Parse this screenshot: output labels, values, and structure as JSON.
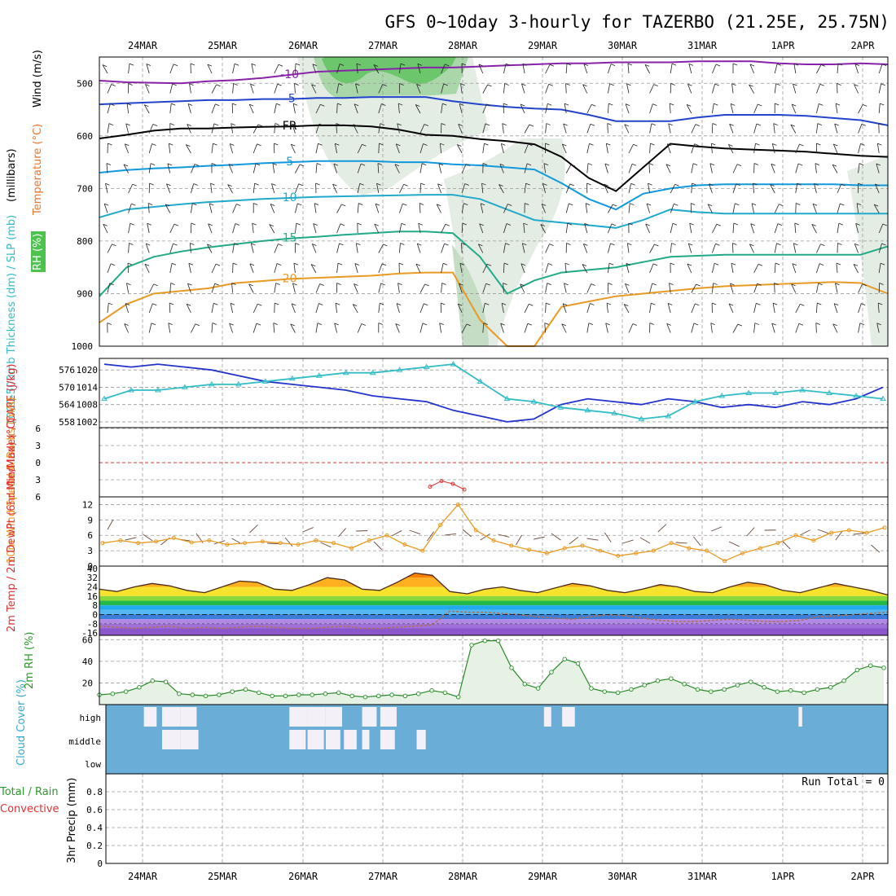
{
  "title": "GFS 0~10day 3-hourly for TAZERBO (21.25E, 25.75N)",
  "dates": [
    "24MAR",
    "25MAR",
    "26MAR",
    "27MAR",
    "28MAR",
    "29MAR",
    "30MAR",
    "31MAR",
    "1APR",
    "2APR"
  ],
  "colors": {
    "cyan": "#33bcc6",
    "blue": "#2233cc",
    "orange": "#e89a25",
    "green": "#2a8a2a",
    "purple": "#8822aa",
    "cloud": "#6aadd6",
    "cloudwhite": "#eeeef4"
  },
  "chart_data": [
    {
      "id": "upper",
      "type": "area",
      "ylabel": "(millibars)",
      "ylabel_lines": [
        "RH (%)",
        "Temperature (°C)",
        "Wind (m/s)"
      ],
      "yticks": [
        500,
        600,
        700,
        800,
        900,
        1000
      ],
      "ylim": [
        1000,
        450
      ],
      "temperature_contour_labels": [
        "-10",
        "-5",
        "FR",
        "5",
        "10",
        "15",
        "20"
      ],
      "temperature_isotherms": [
        {
          "label": "-10",
          "color": "#8822aa",
          "pressure": [
            495,
            498,
            499,
            500,
            496,
            494,
            490,
            484,
            478,
            476,
            474,
            472,
            470,
            470,
            468,
            466,
            464,
            462,
            462,
            460,
            460,
            460,
            458,
            458,
            458,
            462,
            464,
            464,
            462,
            464
          ]
        },
        {
          "label": "-5",
          "color": "#2244cc",
          "pressure": [
            540,
            538,
            536,
            534,
            532,
            532,
            530,
            530,
            528,
            528,
            526,
            526,
            526,
            534,
            540,
            545,
            548,
            550,
            560,
            572,
            572,
            572,
            565,
            560,
            560,
            560,
            562,
            566,
            570,
            580
          ]
        },
        {
          "label": "FR",
          "color": "#000000",
          "pressure": [
            605,
            598,
            590,
            586,
            586,
            584,
            583,
            582,
            580,
            580,
            582,
            588,
            598,
            600,
            606,
            610,
            616,
            640,
            680,
            705,
            660,
            615,
            620,
            624,
            626,
            628,
            630,
            634,
            638,
            640
          ]
        },
        {
          "label": "5",
          "color": "#1199dd",
          "pressure": [
            670,
            665,
            662,
            660,
            657,
            655,
            652,
            650,
            648,
            648,
            648,
            650,
            650,
            654,
            656,
            660,
            664,
            690,
            720,
            740,
            710,
            700,
            694,
            692,
            692,
            692,
            692,
            692,
            694,
            694
          ]
        },
        {
          "label": "10",
          "color": "#22aacc",
          "pressure": [
            755,
            740,
            735,
            730,
            726,
            723,
            720,
            718,
            716,
            715,
            714,
            713,
            712,
            712,
            720,
            740,
            760,
            765,
            770,
            775,
            760,
            740,
            745,
            748,
            748,
            748,
            748,
            748,
            748,
            748
          ]
        },
        {
          "label": "15",
          "color": "#22aa88",
          "pressure": [
            905,
            850,
            830,
            820,
            812,
            806,
            800,
            795,
            792,
            788,
            785,
            782,
            782,
            785,
            830,
            900,
            875,
            860,
            855,
            850,
            840,
            830,
            828,
            826,
            826,
            826,
            826,
            826,
            826,
            810
          ]
        },
        {
          "label": "20",
          "color": "#e89a25",
          "pressure": [
            955,
            920,
            900,
            895,
            890,
            880,
            876,
            872,
            870,
            868,
            866,
            862,
            860,
            860,
            950,
            1000,
            1000,
            925,
            915,
            905,
            900,
            895,
            890,
            886,
            884,
            882,
            880,
            878,
            880,
            900
          ]
        }
      ]
    },
    {
      "id": "slp-thickness",
      "type": "line",
      "ylabel": "1000-500mb Thickness (dm) / SLP (mb)",
      "left_ticks": [
        "576",
        "570",
        "564",
        "558"
      ],
      "right_ticks": [
        "1020",
        "1014",
        "1008",
        "1002"
      ],
      "series": [
        {
          "name": "SLP (mb)",
          "color": "#2233cc",
          "values": [
            1022,
            1021,
            1022,
            1021,
            1020,
            1018,
            1016,
            1015,
            1014,
            1013,
            1011,
            1010,
            1009,
            1006,
            1004,
            1002,
            1003,
            1008,
            1010,
            1009,
            1008,
            1010,
            1009,
            1007,
            1008,
            1007,
            1009,
            1008,
            1010,
            1014
          ]
        },
        {
          "name": "1000-500mb Thickness (dm)",
          "color": "#33bcc6",
          "values": [
            566,
            569,
            569,
            570,
            571,
            571,
            572,
            573,
            574,
            575,
            575,
            576,
            577,
            578,
            572,
            566,
            565,
            563,
            562,
            561,
            559,
            560,
            565,
            567,
            568,
            568,
            569,
            568,
            567,
            566
          ]
        }
      ]
    },
    {
      "id": "cape-li",
      "type": "line",
      "ylabel": "Lifted Index / CAPE (J/kg)",
      "yticks": [
        "-6",
        "-3",
        "0",
        "3",
        "6"
      ],
      "series": [
        {
          "name": "Lifted Index",
          "color": "#dd3333",
          "x": [
            27.6,
            27.75,
            27.9,
            28.05
          ],
          "values": [
            4.5,
            3.5,
            4.0,
            5.0
          ]
        }
      ]
    },
    {
      "id": "wind10m",
      "type": "line",
      "ylabel": "10m Wind Speed & Barbs (m/s)",
      "yticks": [
        "12",
        "9",
        "6",
        "3",
        "0"
      ],
      "series": [
        {
          "name": "10m Wind Speed",
          "color": "#e89a25",
          "values": [
            4.5,
            5,
            4.5,
            4.8,
            5.5,
            4.6,
            5,
            4.2,
            4.5,
            4.8,
            4.5,
            4.2,
            5,
            4.5,
            3.5,
            5,
            6,
            4.2,
            3,
            8,
            12,
            7,
            5,
            4,
            3.2,
            2.5,
            3.5,
            4,
            3,
            2,
            2.5,
            3,
            4.5,
            3.5,
            3,
            1,
            2.5,
            3.5,
            4.5,
            6,
            5,
            6.5,
            7,
            6.5,
            7.5
          ]
        }
      ]
    },
    {
      "id": "temp2m",
      "type": "area",
      "ylabel": "2m Temp / 2m DewPt (6hr Min/Max) (°C)",
      "yticks": [
        "40",
        "32",
        "24",
        "16",
        "8",
        "0",
        "-8",
        "-16"
      ],
      "series": [
        {
          "name": "2m Temp",
          "values": [
            22,
            20,
            24,
            27,
            25,
            21,
            19,
            24,
            29,
            28,
            22,
            21,
            26,
            32,
            30,
            22,
            21,
            28,
            36,
            34,
            20,
            18,
            22,
            24,
            21,
            19,
            23,
            27,
            25,
            21,
            19,
            22,
            26,
            24,
            20,
            19,
            24,
            28,
            26,
            21,
            19,
            23,
            27,
            24,
            21,
            17
          ]
        },
        {
          "name": "2m DewPt",
          "values": [
            -10,
            -11,
            -12,
            -11,
            -10,
            -12,
            -11,
            -12,
            -11,
            -10,
            -11,
            -12,
            -12,
            -11,
            -10,
            -12,
            -12,
            -11,
            -10,
            -9,
            3,
            2,
            2,
            1,
            0,
            -2,
            -3,
            -4,
            -2,
            0,
            -1,
            -3,
            -5,
            -6,
            -6,
            -5,
            -4,
            -5,
            -6,
            -6,
            -5,
            -2,
            -1,
            0,
            1,
            2
          ]
        }
      ]
    },
    {
      "id": "rh2m",
      "type": "area",
      "ylabel": "2m RH (%)",
      "yticks": [
        "60",
        "40",
        "20"
      ],
      "series": [
        {
          "name": "2m RH",
          "values": [
            9,
            10,
            12,
            16,
            22,
            21,
            10,
            9,
            8,
            9,
            12,
            14,
            11,
            8,
            8,
            9,
            9,
            10,
            11,
            8,
            7,
            8,
            9,
            8,
            10,
            13,
            11,
            7,
            55,
            59,
            59,
            34,
            19,
            15,
            30,
            42,
            38,
            15,
            12,
            11,
            14,
            18,
            22,
            24,
            19,
            14,
            12,
            14,
            18,
            21,
            16,
            12,
            13,
            11,
            14,
            16,
            22,
            32,
            36,
            34
          ]
        }
      ]
    },
    {
      "id": "cloud",
      "type": "heatmap",
      "ylabel": "Cloud Cover (%)",
      "yticks": [
        "high",
        "middle",
        "low"
      ],
      "series": [
        {
          "name": "high",
          "values": [
            0,
            0,
            0.6,
            0.9,
            0.8,
            0,
            0,
            0,
            0,
            0,
            0.9,
            0.9,
            0.8,
            0,
            0.7,
            0.8,
            0,
            0,
            0,
            0,
            0,
            0,
            0,
            0,
            0.3,
            0.6,
            0,
            0,
            0,
            0,
            0,
            0,
            0,
            0,
            0,
            0,
            0,
            0,
            0.1,
            0,
            0,
            0,
            0
          ]
        },
        {
          "name": "middle",
          "values": [
            0,
            0,
            0,
            0.9,
            0.9,
            0,
            0,
            0,
            0,
            0,
            0.8,
            0.8,
            0.7,
            0.6,
            0.3,
            0.7,
            0,
            0.4,
            0,
            0,
            0,
            0,
            0,
            0,
            0,
            0,
            0,
            0,
            0,
            0,
            0,
            0,
            0,
            0,
            0,
            0,
            0,
            0,
            0,
            0,
            0,
            0,
            0
          ]
        },
        {
          "name": "low",
          "values": [
            0,
            0,
            0,
            0,
            0,
            0,
            0,
            0,
            0,
            0,
            0,
            0,
            0,
            0,
            0,
            0,
            0,
            0,
            0,
            0,
            0,
            0,
            0,
            0,
            0,
            0,
            0,
            0,
            0,
            0,
            0,
            0,
            0,
            0,
            0,
            0,
            0,
            0,
            0,
            0,
            0,
            0,
            0
          ]
        }
      ]
    },
    {
      "id": "precip",
      "type": "bar",
      "ylabel": "Total / Rain / Convective 3hr Precip (mm)",
      "ylabel_lines": [
        "Total / Rain",
        "Convective",
        "3hr Precip (mm)"
      ],
      "yticks": [
        "0.8",
        "0.6",
        "0.4",
        "0.2",
        "0"
      ],
      "ylim": [
        0,
        1.0
      ],
      "run_total": "Run Total = 0",
      "series": [
        {
          "name": "Total",
          "values": [
            0,
            0,
            0,
            0,
            0,
            0,
            0,
            0,
            0,
            0
          ]
        }
      ]
    }
  ]
}
